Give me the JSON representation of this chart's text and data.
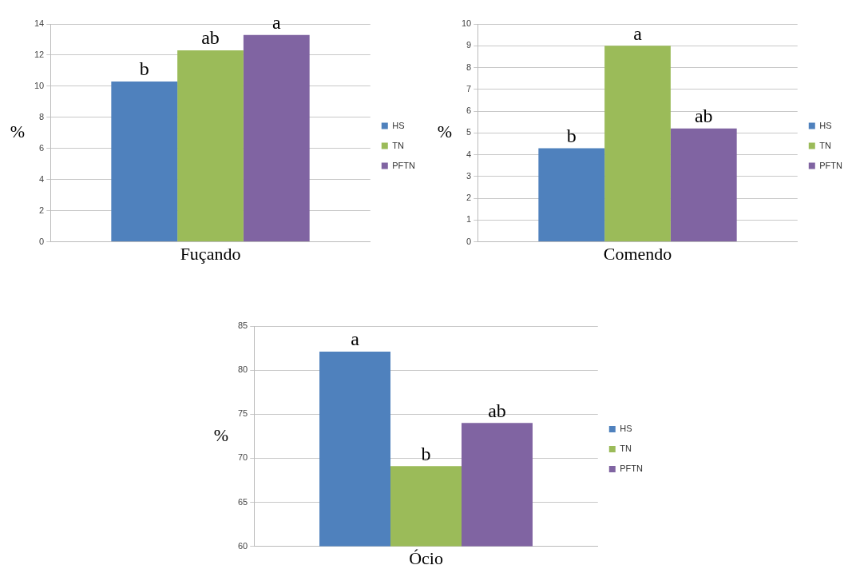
{
  "chart_data": [
    {
      "type": "bar",
      "categories": [
        "Fuçando"
      ],
      "ylabel": "%",
      "ylim": [
        0,
        14
      ],
      "yticks": [
        0,
        2,
        4,
        6,
        8,
        10,
        12,
        14
      ],
      "grid": "y",
      "legend": "right",
      "series": [
        {
          "name": "HS",
          "color": "#4f81bd",
          "values": [
            10.3
          ],
          "value_labels": [
            "b"
          ]
        },
        {
          "name": "TN",
          "color": "#9bbb59",
          "values": [
            12.3
          ],
          "value_labels": [
            "ab"
          ]
        },
        {
          "name": "PFTN",
          "color": "#8064a2",
          "values": [
            13.3
          ],
          "value_labels": [
            "a"
          ]
        }
      ]
    },
    {
      "type": "bar",
      "categories": [
        "Comendo"
      ],
      "ylabel": "%",
      "ylim": [
        0,
        10
      ],
      "yticks": [
        0,
        1,
        2,
        3,
        4,
        5,
        6,
        7,
        8,
        9,
        10
      ],
      "grid": "y",
      "legend": "right",
      "series": [
        {
          "name": "HS",
          "color": "#4f81bd",
          "values": [
            4.3
          ],
          "value_labels": [
            "b"
          ]
        },
        {
          "name": "TN",
          "color": "#9bbb59",
          "values": [
            9.0
          ],
          "value_labels": [
            "a"
          ]
        },
        {
          "name": "PFTN",
          "color": "#8064a2",
          "values": [
            5.2
          ],
          "value_labels": [
            "ab"
          ]
        }
      ]
    },
    {
      "type": "bar",
      "categories": [
        "Ócio"
      ],
      "ylabel": "%",
      "ylim": [
        60,
        85
      ],
      "yticks": [
        60,
        65,
        70,
        75,
        80,
        85
      ],
      "grid": "y",
      "legend": "right",
      "series": [
        {
          "name": "HS",
          "color": "#4f81bd",
          "values": [
            82.1
          ],
          "value_labels": [
            "a"
          ]
        },
        {
          "name": "TN",
          "color": "#9bbb59",
          "values": [
            69.1
          ],
          "value_labels": [
            "b"
          ]
        },
        {
          "name": "PFTN",
          "color": "#8064a2",
          "values": [
            74.0
          ],
          "value_labels": [
            "ab"
          ]
        }
      ]
    }
  ]
}
